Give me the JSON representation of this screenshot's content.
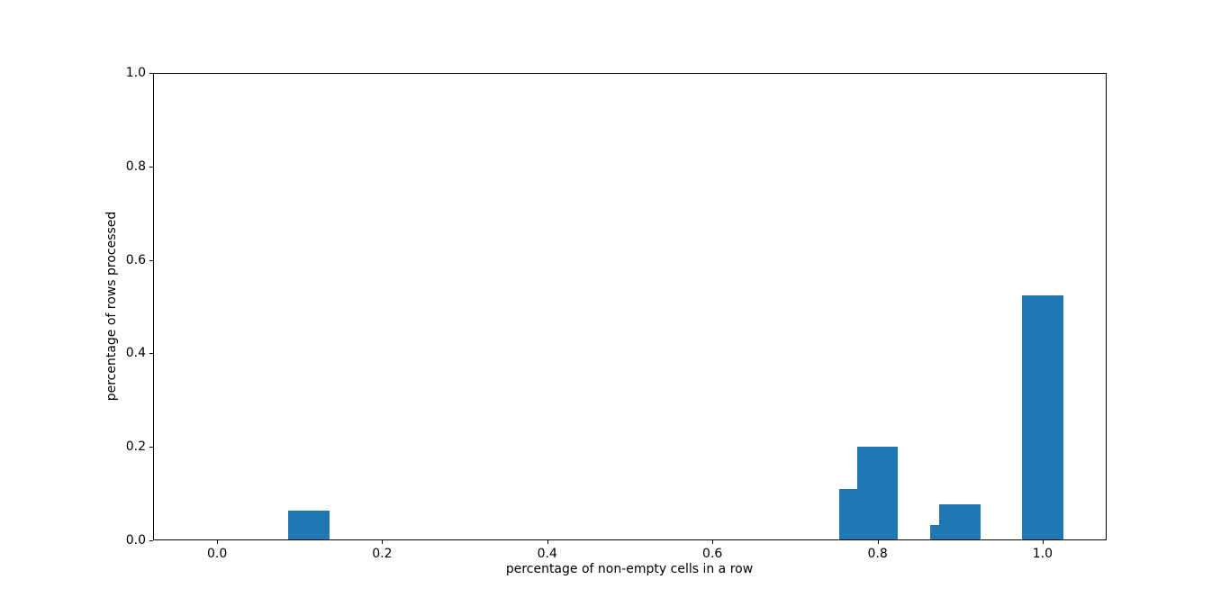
{
  "figure": {
    "background_color": "#ffffff",
    "spine_color": "#000000",
    "text_color": "#000000"
  },
  "chart_data": {
    "type": "bar",
    "title": "",
    "xlabel": "percentage of non-empty cells in a row",
    "ylabel": "percentage of rows processed",
    "x": [
      0.111,
      0.778,
      0.8,
      0.889,
      0.9,
      1.0
    ],
    "values": [
      0.064,
      0.11,
      0.2,
      0.032,
      0.078,
      0.524
    ],
    "bar_width": 0.05,
    "bar_color": "#1f77b4",
    "xlim": [
      -0.0775,
      1.0775
    ],
    "ylim": [
      0,
      1
    ],
    "x_tick_values": [
      0.0,
      0.2,
      0.4,
      0.6,
      0.8,
      1.0
    ],
    "x_tick_labels": [
      "0.0",
      "0.2",
      "0.4",
      "0.6",
      "0.8",
      "1.0"
    ],
    "y_tick_values": [
      0.0,
      0.2,
      0.4,
      0.6,
      0.8,
      1.0
    ],
    "y_tick_labels": [
      "0.0",
      "0.2",
      "0.4",
      "0.6",
      "0.8",
      "1.0"
    ],
    "grid": false,
    "legend": null
  }
}
